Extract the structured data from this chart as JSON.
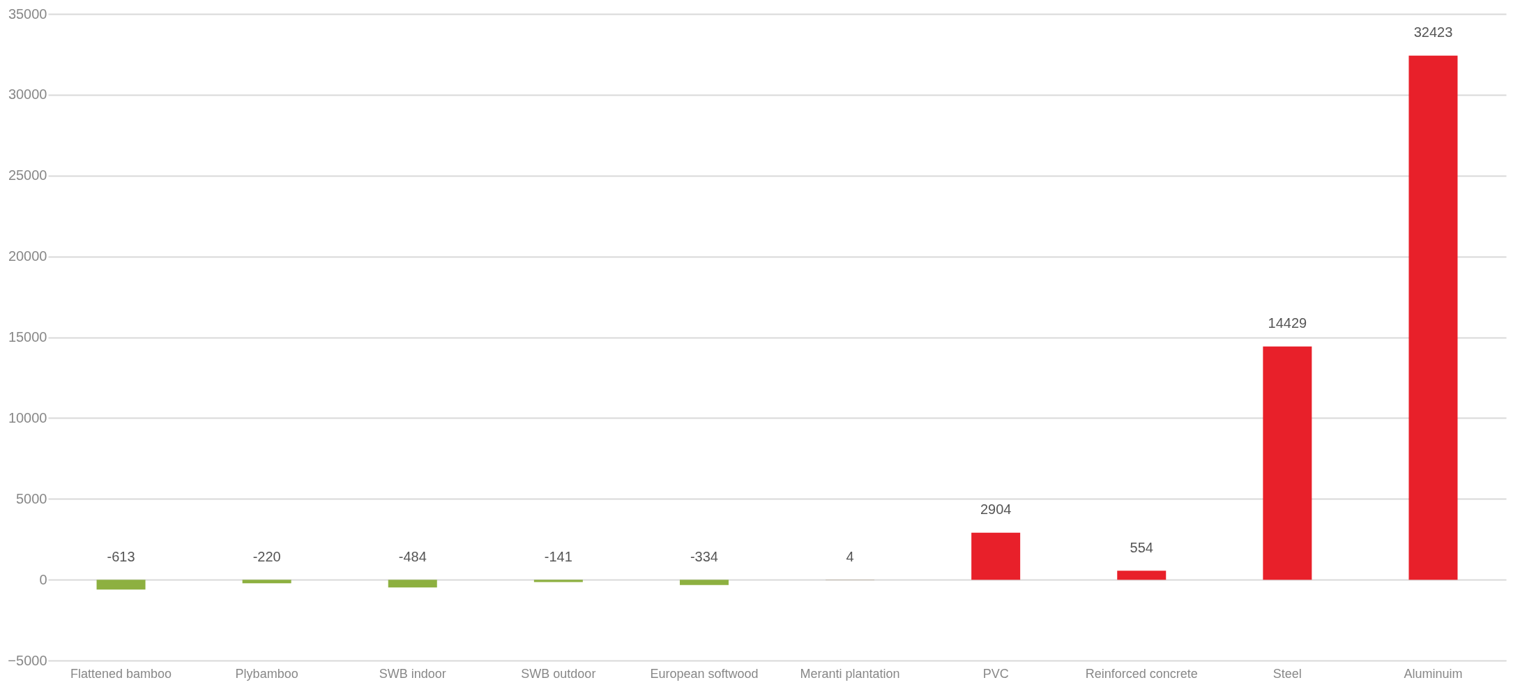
{
  "chart_data": {
    "type": "bar",
    "categories": [
      "Flattened bamboo",
      "Plybamboo",
      "SWB indoor",
      "SWB outdoor",
      "European softwood",
      "Meranti plantation",
      "PVC",
      "Reinforced concrete",
      "Steel",
      "Aluminuim"
    ],
    "series": [
      {
        "values": [
          -613,
          -220,
          -484,
          -141,
          -334,
          4,
          2904,
          554,
          14429,
          32423
        ],
        "colors": [
          "#8db040",
          "#8db040",
          "#8db040",
          "#8db040",
          "#8db040",
          "#8b6a3c",
          "#e8202a",
          "#e8202a",
          "#e8202a",
          "#e8202a"
        ]
      }
    ],
    "ylim": [
      -5000,
      35000
    ],
    "yticks": [
      -5000,
      0,
      5000,
      10000,
      15000,
      20000,
      25000,
      30000,
      35000
    ],
    "grid": "y",
    "data_labels": true
  }
}
